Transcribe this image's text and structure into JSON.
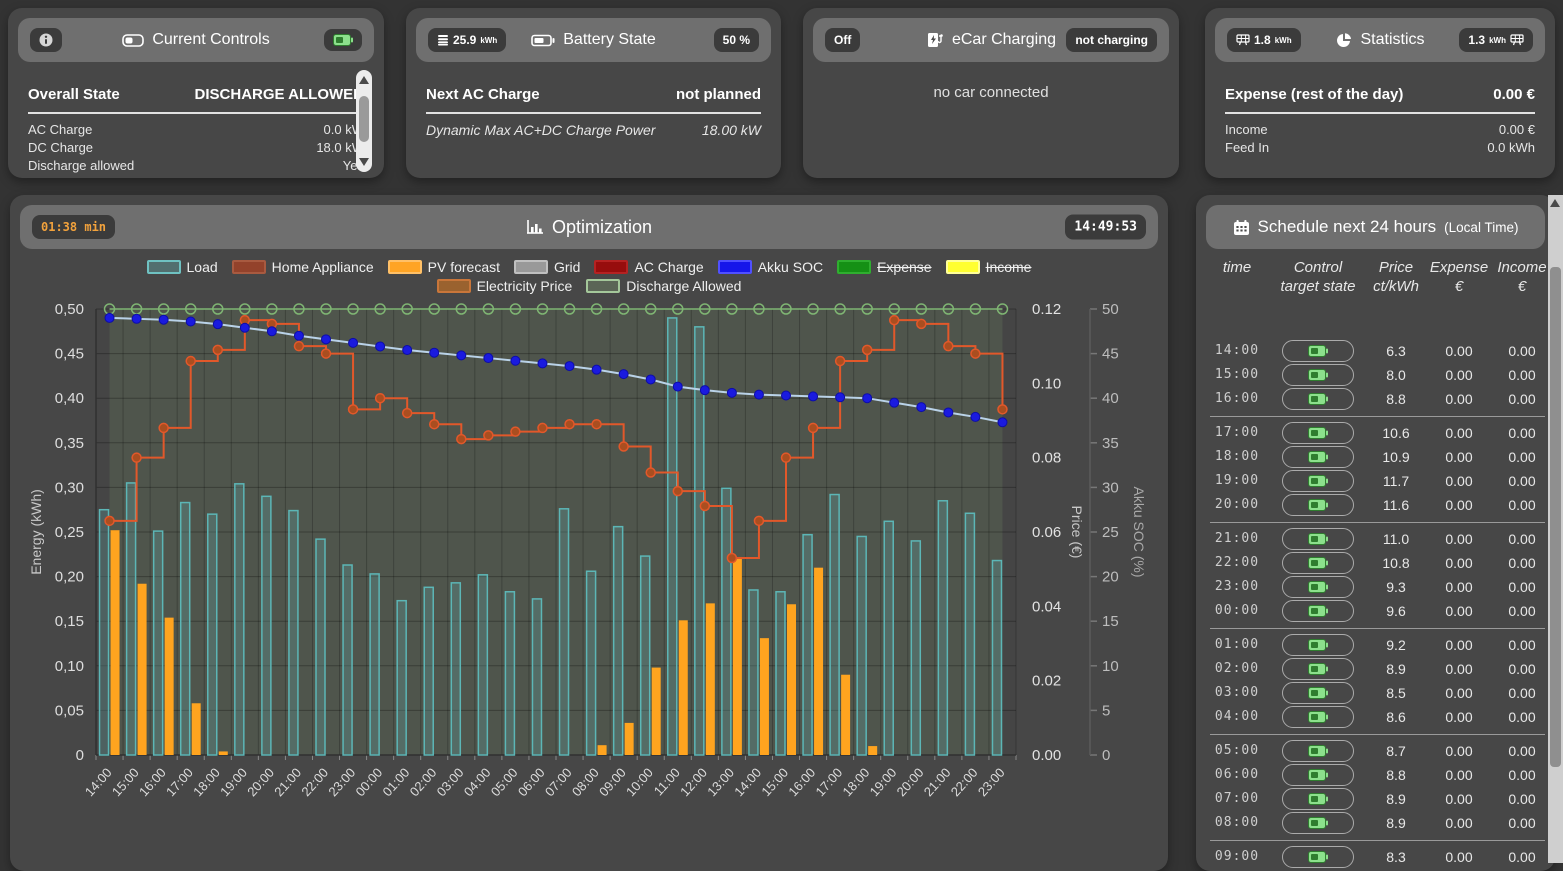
{
  "cards": {
    "current_controls": {
      "title": "Current Controls",
      "header_label": "Overall State",
      "header_value": "DISCHARGE ALLOWED",
      "rows": [
        {
          "label": "AC Charge",
          "value": "0.0 kW"
        },
        {
          "label": "DC Charge",
          "value": "18.0 kW"
        },
        {
          "label": "Discharge allowed",
          "value": "Yes"
        }
      ]
    },
    "battery_state": {
      "title": "Battery State",
      "left_badge_value": "25.9",
      "left_badge_unit": "kWh",
      "right_badge": "50 %",
      "header_label": "Next AC Charge",
      "header_value": "not planned",
      "rows": [
        {
          "label": "Dynamic Max AC+DC Charge Power",
          "value": "18.00 kW"
        }
      ]
    },
    "ecar_charging": {
      "title": "eCar Charging",
      "left_badge": "Off",
      "right_badge": "not charging",
      "body_text": "no car connected"
    },
    "statistics": {
      "title": "Statistics",
      "left_badge_value": "1.8",
      "left_badge_unit": "kWh",
      "right_badge_value": "1.3",
      "right_badge_unit": "kWh",
      "header_label": "Expense (rest of the day)",
      "header_value": "0.00 €",
      "rows": [
        {
          "label": "Income",
          "value": "0.00 €"
        },
        {
          "label": "Feed In",
          "value": "0.0 kWh"
        }
      ]
    }
  },
  "optimization": {
    "title": "Optimization",
    "elapsed_badge": "01:38 min",
    "clock_badge": "14:49:53"
  },
  "chart_data": {
    "type": "mixed",
    "categories": [
      "14:00",
      "15:00",
      "16:00",
      "17:00",
      "18:00",
      "19:00",
      "20:00",
      "21:00",
      "22:00",
      "23:00",
      "00:00",
      "01:00",
      "02:00",
      "03:00",
      "04:00",
      "05:00",
      "06:00",
      "07:00",
      "08:00",
      "09:00",
      "10:00",
      "11:00",
      "12:00",
      "13:00",
      "14:00",
      "15:00",
      "16:00",
      "17:00",
      "18:00",
      "19:00",
      "20:00",
      "21:00",
      "22:00",
      "23:00"
    ],
    "axes": {
      "energy": {
        "label": "Energy (kWh)",
        "min": 0,
        "max": 0.5,
        "tick_labels": [
          "0,50",
          "0,45",
          "0,40",
          "0,35",
          "0,30",
          "0,25",
          "0,20",
          "0,15",
          "0,10",
          "0,05",
          "0"
        ]
      },
      "price": {
        "label": "Price (€)",
        "min": 0,
        "max": 0.12,
        "tick_labels": [
          "0.12",
          "0.10",
          "0.08",
          "0.06",
          "0.04",
          "0.02",
          "0.00"
        ]
      },
      "soc": {
        "label": "Akku SOC (%)",
        "min": 0,
        "max": 50,
        "tick_labels": [
          "50",
          "45",
          "40",
          "35",
          "30",
          "25",
          "20",
          "15",
          "10",
          "5",
          "0"
        ]
      }
    },
    "series": [
      {
        "name": "Load",
        "type": "bar",
        "axis": "energy",
        "hidden": false,
        "swatch_fill": "rgba(95,160,160,0.45)",
        "swatch_border": "#6fc2c2",
        "fill": "rgba(95,160,160,0.32)",
        "stroke": "#5cb6b6",
        "values": [
          0.275,
          0.305,
          0.251,
          0.283,
          0.27,
          0.304,
          0.29,
          0.274,
          0.242,
          0.213,
          0.203,
          0.173,
          0.188,
          0.193,
          0.202,
          0.183,
          0.175,
          0.276,
          0.206,
          0.256,
          0.223,
          0.49,
          0.48,
          0.299,
          0.185,
          0.183,
          0.247,
          0.292,
          0.245,
          0.262,
          0.24,
          0.285,
          0.271,
          0.218
        ]
      },
      {
        "name": "Home Appliance",
        "type": "bar",
        "axis": "energy",
        "hidden": false,
        "swatch_fill": "#93422b",
        "swatch_border": "#a85a40",
        "values": []
      },
      {
        "name": "PV forecast",
        "type": "bar",
        "axis": "energy",
        "hidden": false,
        "swatch_fill": "#ffa424",
        "swatch_border": "#ffc067",
        "fill": "#ffa41f",
        "values": [
          0.252,
          0.192,
          0.154,
          0.058,
          0.004,
          0,
          0,
          0,
          0,
          0,
          0,
          0,
          0,
          0,
          0,
          0,
          0,
          0,
          0.011,
          0.036,
          0.098,
          0.151,
          0.17,
          0.222,
          0.131,
          0.169,
          0.21,
          0.09,
          0.01,
          0,
          0,
          0,
          0,
          0
        ]
      },
      {
        "name": "Grid",
        "type": "bar",
        "axis": "energy",
        "hidden": false,
        "swatch_fill": "#999999",
        "swatch_border": "#c0c0c0",
        "values": []
      },
      {
        "name": "AC Charge",
        "type": "bar",
        "axis": "energy",
        "hidden": false,
        "swatch_fill": "#970d0d",
        "swatch_border": "#b52222",
        "values": []
      },
      {
        "name": "Akku SOC",
        "type": "line",
        "axis": "soc",
        "hidden": false,
        "swatch_fill": "#1616ea",
        "swatch_border": "#5050ff",
        "line_color": "#b9d2e8",
        "dot_fill": "#1a1adf",
        "dot_stroke": "#0d0da8",
        "values": [
          49.0,
          48.9,
          48.8,
          48.6,
          48.3,
          47.9,
          47.5,
          47.0,
          46.6,
          46.2,
          45.8,
          45.4,
          45.1,
          44.8,
          44.5,
          44.2,
          43.9,
          43.6,
          43.2,
          42.7,
          42.1,
          41.3,
          40.9,
          40.6,
          40.4,
          40.3,
          40.2,
          40.1,
          40.0,
          39.5,
          39.0,
          38.4,
          37.9,
          37.3
        ]
      },
      {
        "name": "Expense",
        "type": "bar",
        "axis": "energy",
        "hidden": true,
        "swatch_fill": "#159015",
        "swatch_border": "#2fae2f",
        "values": []
      },
      {
        "name": "Income",
        "type": "bar",
        "axis": "energy",
        "hidden": true,
        "swatch_fill": "#ffff30",
        "swatch_border": "#ffff99",
        "values": []
      },
      {
        "name": "Electricity Price",
        "type": "step",
        "axis": "price",
        "hidden": false,
        "swatch_fill": "#9a622f",
        "swatch_border": "#c9763a",
        "line_color": "#e2582a",
        "dot_fill": "#aa4e20",
        "dot_stroke": "#e2582a",
        "values_ct": [
          6.3,
          8.0,
          8.8,
          10.6,
          10.9,
          11.7,
          11.6,
          11.0,
          10.8,
          9.3,
          9.6,
          9.2,
          8.9,
          8.5,
          8.6,
          8.7,
          8.8,
          8.9,
          8.9,
          8.3,
          7.6,
          7.1,
          6.7,
          5.3,
          6.3,
          8.0,
          8.8,
          10.6,
          10.9,
          11.7,
          11.6,
          11.0,
          10.8,
          9.3
        ]
      },
      {
        "name": "Discharge Allowed",
        "type": "region",
        "axis": "soc",
        "hidden": false,
        "swatch_fill": "rgba(150,190,130,0.25)",
        "swatch_border": "#a4c79a",
        "line_color": "#7fb573",
        "region_fill": "rgba(150,190,120,0.13)",
        "values": [
          1,
          1,
          1,
          1,
          1,
          1,
          1,
          1,
          1,
          1,
          1,
          1,
          1,
          1,
          1,
          1,
          1,
          1,
          1,
          1,
          1,
          1,
          1,
          1,
          1,
          1,
          1,
          1,
          1,
          1,
          1,
          1,
          1,
          1
        ]
      }
    ],
    "legend_rows": [
      [
        0,
        1,
        2,
        3,
        4,
        5,
        6,
        7
      ],
      [
        8,
        9
      ]
    ]
  },
  "schedule": {
    "title": "Schedule next 24 hours",
    "title_suffix": "(Local Time)",
    "columns": [
      {
        "l1": "time",
        "l2": ""
      },
      {
        "l1": "Control",
        "l2": "target state"
      },
      {
        "l1": "Price",
        "l2": "ct/kWh"
      },
      {
        "l1": "Expense",
        "l2": "€"
      },
      {
        "l1": "Income",
        "l2": "€"
      }
    ],
    "groups": [
      [
        {
          "time": "14:00",
          "price": "6.3",
          "expense": "0.00",
          "income": "0.00"
        },
        {
          "time": "15:00",
          "price": "8.0",
          "expense": "0.00",
          "income": "0.00"
        },
        {
          "time": "16:00",
          "price": "8.8",
          "expense": "0.00",
          "income": "0.00"
        }
      ],
      [
        {
          "time": "17:00",
          "price": "10.6",
          "expense": "0.00",
          "income": "0.00"
        },
        {
          "time": "18:00",
          "price": "10.9",
          "expense": "0.00",
          "income": "0.00"
        },
        {
          "time": "19:00",
          "price": "11.7",
          "expense": "0.00",
          "income": "0.00"
        },
        {
          "time": "20:00",
          "price": "11.6",
          "expense": "0.00",
          "income": "0.00"
        }
      ],
      [
        {
          "time": "21:00",
          "price": "11.0",
          "expense": "0.00",
          "income": "0.00"
        },
        {
          "time": "22:00",
          "price": "10.8",
          "expense": "0.00",
          "income": "0.00"
        },
        {
          "time": "23:00",
          "price": "9.3",
          "expense": "0.00",
          "income": "0.00"
        },
        {
          "time": "00:00",
          "price": "9.6",
          "expense": "0.00",
          "income": "0.00"
        }
      ],
      [
        {
          "time": "01:00",
          "price": "9.2",
          "expense": "0.00",
          "income": "0.00"
        },
        {
          "time": "02:00",
          "price": "8.9",
          "expense": "0.00",
          "income": "0.00"
        },
        {
          "time": "03:00",
          "price": "8.5",
          "expense": "0.00",
          "income": "0.00"
        },
        {
          "time": "04:00",
          "price": "8.6",
          "expense": "0.00",
          "income": "0.00"
        }
      ],
      [
        {
          "time": "05:00",
          "price": "8.7",
          "expense": "0.00",
          "income": "0.00"
        },
        {
          "time": "06:00",
          "price": "8.8",
          "expense": "0.00",
          "income": "0.00"
        },
        {
          "time": "07:00",
          "price": "8.9",
          "expense": "0.00",
          "income": "0.00"
        },
        {
          "time": "08:00",
          "price": "8.9",
          "expense": "0.00",
          "income": "0.00"
        }
      ],
      [
        {
          "time": "09:00",
          "price": "8.3",
          "expense": "0.00",
          "income": "0.00"
        }
      ]
    ]
  }
}
